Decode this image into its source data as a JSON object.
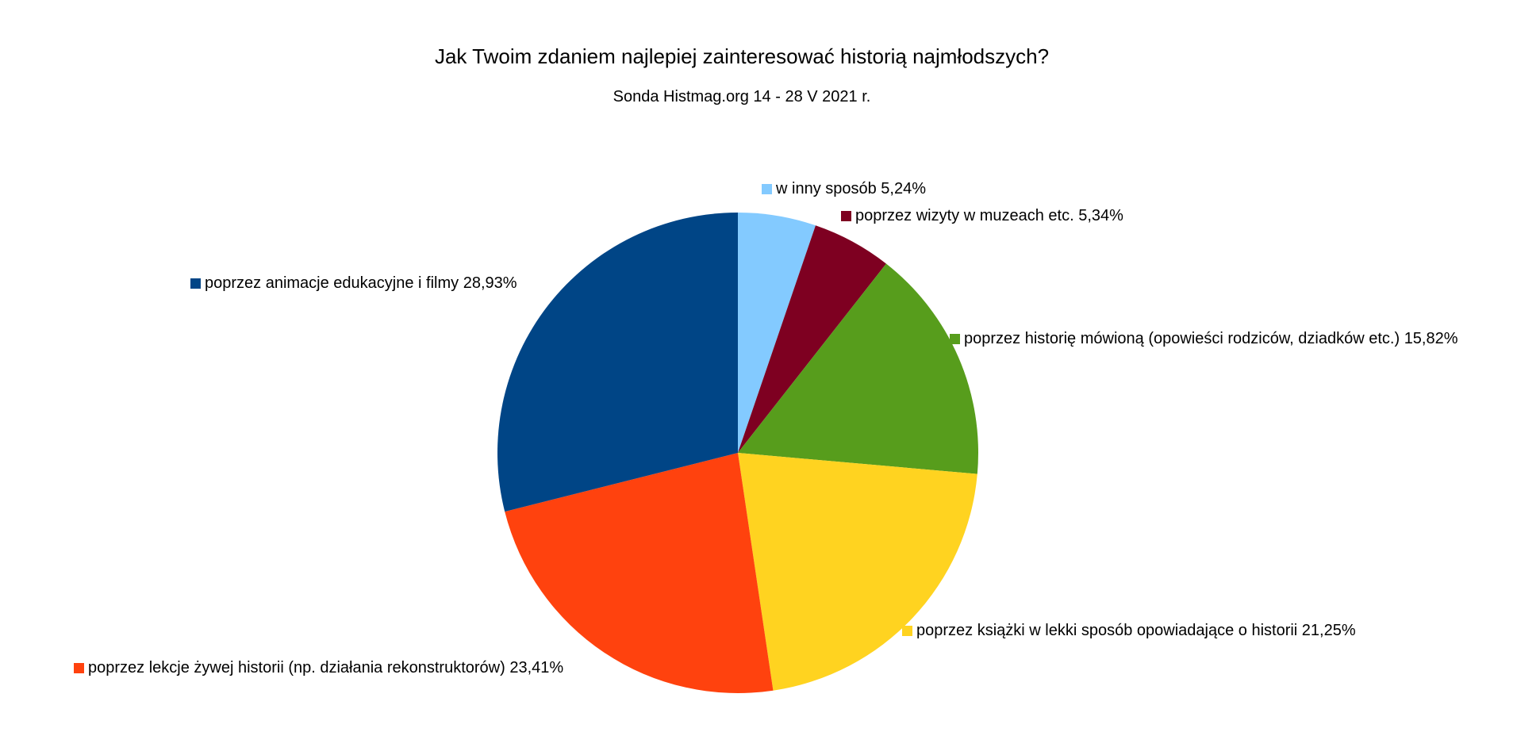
{
  "chart_data": {
    "type": "pie",
    "title": "Jak Twoim zdaniem najlepiej zainteresować historią najmłodszych?",
    "subtitle": "Sonda Histmag.org 14 - 28 V 2021 r.",
    "slices": [
      {
        "label": "w inny sposób",
        "value": 5.24,
        "value_text": "5,24%",
        "color": "#83caff"
      },
      {
        "label": "poprzez wizyty w muzeach etc.",
        "value": 5.34,
        "value_text": "5,34%",
        "color": "#7e0021"
      },
      {
        "label": "poprzez historię mówioną (opowieści rodziców, dziadków etc.)",
        "value": 15.82,
        "value_text": "15,82%",
        "color": "#579d1c"
      },
      {
        "label": "poprzez książki w lekki sposób opowiadające o historii",
        "value": 21.25,
        "value_text": "21,25%",
        "color": "#ffd320"
      },
      {
        "label": "poprzez lekcje żywej historii (np. działania rekonstruktorów)",
        "value": 23.41,
        "value_text": "23,41%",
        "color": "#ff420e"
      },
      {
        "label": "poprzez animacje edukacyjne i filmy",
        "value": 28.93,
        "value_text": "28,93%",
        "color": "#004586"
      }
    ],
    "start_angle": "12 o'clock",
    "direction": "clockwise",
    "label_format": "{label} {value_text}",
    "legend": "none (labels next to slices)"
  }
}
